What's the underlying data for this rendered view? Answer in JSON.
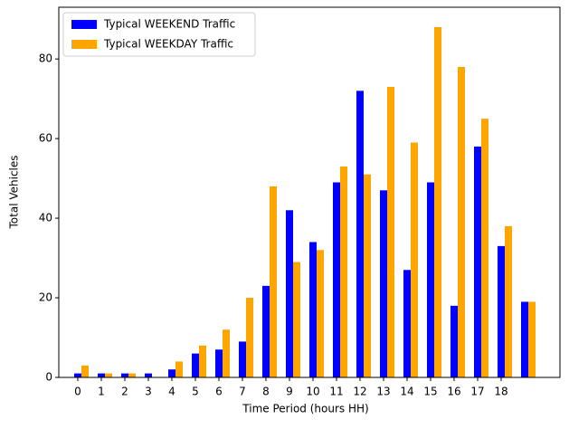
{
  "chart_data": {
    "type": "bar",
    "xlabel": "Time Period (hours HH)",
    "ylabel": "Total Vehicles",
    "categories": [
      "0",
      "1",
      "2",
      "3",
      "4",
      "5",
      "6",
      "7",
      "8",
      "9",
      "10",
      "11",
      "12",
      "13",
      "14",
      "15",
      "16",
      "17",
      "18",
      null
    ],
    "series": [
      {
        "name": "Typical WEEKEND Traffic",
        "color": "#0000ff",
        "values": [
          1,
          1,
          1,
          1,
          2,
          6,
          7,
          9,
          23,
          42,
          34,
          49,
          72,
          47,
          27,
          49,
          18,
          58,
          33,
          19
        ]
      },
      {
        "name": "Typical WEEKDAY Traffic",
        "color": "#ffa500",
        "values": [
          3,
          1,
          1,
          0,
          4,
          8,
          12,
          20,
          48,
          29,
          32,
          53,
          51,
          73,
          59,
          88,
          78,
          65,
          38,
          19
        ]
      }
    ],
    "ylim": [
      0,
      93
    ],
    "yticks": [
      0,
      20,
      40,
      60,
      80
    ],
    "grid": false,
    "legend": "upper left"
  }
}
